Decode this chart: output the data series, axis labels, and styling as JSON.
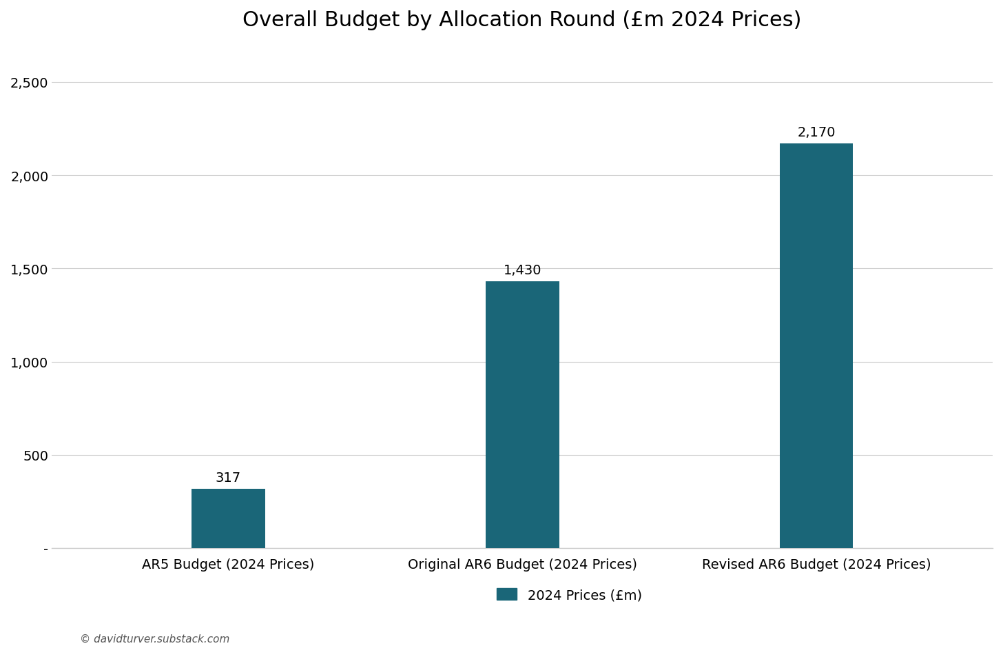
{
  "title": "Overall Budget by Allocation Round (£m 2024 Prices)",
  "categories": [
    "AR5 Budget (2024 Prices)",
    "Original AR6 Budget (2024 Prices)",
    "Revised AR6 Budget (2024 Prices)"
  ],
  "values": [
    317,
    1430,
    2170
  ],
  "bar_color": "#1a6678",
  "bar_labels": [
    "317",
    "1,430",
    "2,170"
  ],
  "bar_width": 0.25,
  "ylim": [
    0,
    2700
  ],
  "yticks": [
    0,
    500,
    1000,
    1500,
    2000,
    2500
  ],
  "ytick_labels": [
    "-",
    "500",
    "1,000",
    "1,500",
    "2,000",
    "2,500"
  ],
  "legend_label": "2024 Prices (£m)",
  "footer_text": "© davidturver.substack.com",
  "background_color": "#ffffff",
  "title_fontsize": 22,
  "label_fontsize": 14,
  "tick_fontsize": 14,
  "annotation_fontsize": 14,
  "footer_fontsize": 11,
  "grid_color": "#d0d0d0",
  "spine_color": "#cccccc"
}
